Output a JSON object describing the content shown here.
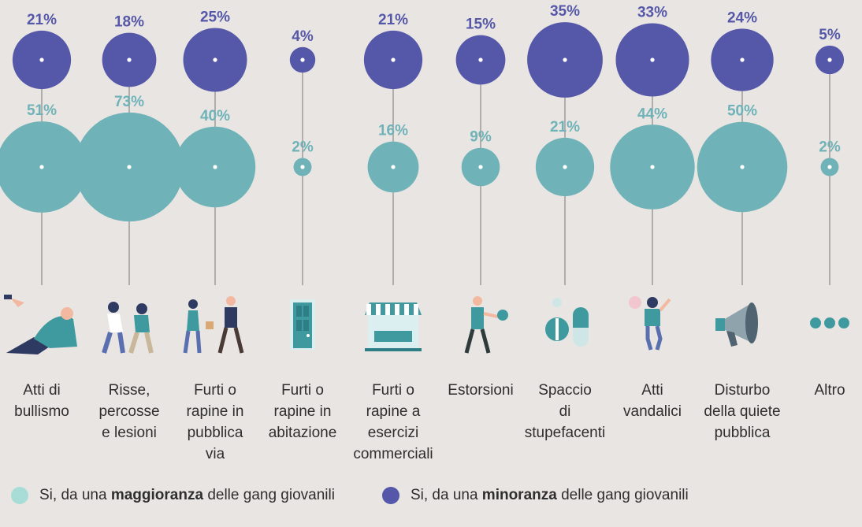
{
  "chart_data": {
    "type": "bubble",
    "categories": [
      "Atti di bullismo",
      "Risse, percosse e lesioni",
      "Furti o rapine in pubblica via",
      "Furti o rapine in abitazione",
      "Furti o rapine a esercizi commerciali",
      "Estorsioni",
      "Spaccio di stupefacenti",
      "Atti vandalici",
      "Disturbo della quiete pubblica",
      "Altro"
    ],
    "category_lines": [
      [
        "Atti di",
        "bullismo"
      ],
      [
        "Risse,",
        "percosse",
        "e lesioni"
      ],
      [
        "Furti o",
        "rapine in",
        "pubblica",
        "via"
      ],
      [
        "Furti o",
        "rapine in",
        "abitazione"
      ],
      [
        "Furti o",
        "rapine a",
        "esercizi",
        "commerciali"
      ],
      [
        "Estorsioni"
      ],
      [
        "Spaccio",
        "di",
        "stupefacenti"
      ],
      [
        "Atti",
        "vandalici"
      ],
      [
        "Disturbo",
        "della quiete",
        "pubblica"
      ],
      [
        "Altro"
      ]
    ],
    "series": [
      {
        "legend_prefix": "Si, da una ",
        "legend_bold": "maggioranza",
        "legend_suffix": " delle gang giovanili",
        "color": "#6fb3b8",
        "legend_color": "#a8dcd6",
        "label_color": "#6fb3b8",
        "values": [
          51,
          73,
          40,
          2,
          16,
          9,
          21,
          44,
          50,
          2
        ],
        "labels": [
          "51%",
          "73%",
          "40%",
          "2%",
          "16%",
          "9%",
          "21%",
          "44%",
          "50%",
          "2%"
        ]
      },
      {
        "legend_prefix": "Si, da una ",
        "legend_bold": "minoranza",
        "legend_suffix": " delle gang giovanili",
        "color": "#5558a8",
        "legend_color": "#5558a8",
        "label_color": "#5558a8",
        "values": [
          21,
          18,
          25,
          4,
          21,
          15,
          35,
          33,
          24,
          5
        ],
        "labels": [
          "21%",
          "18%",
          "25%",
          "4%",
          "21%",
          "15%",
          "35%",
          "33%",
          "24%",
          "5%"
        ]
      }
    ],
    "icons": [
      "bullying-icon",
      "fight-icon",
      "street-robbery-icon",
      "house-door-icon",
      "shop-icon",
      "extortion-icon",
      "drugs-icon",
      "vandalism-icon",
      "megaphone-icon",
      "more-dots-icon"
    ]
  }
}
